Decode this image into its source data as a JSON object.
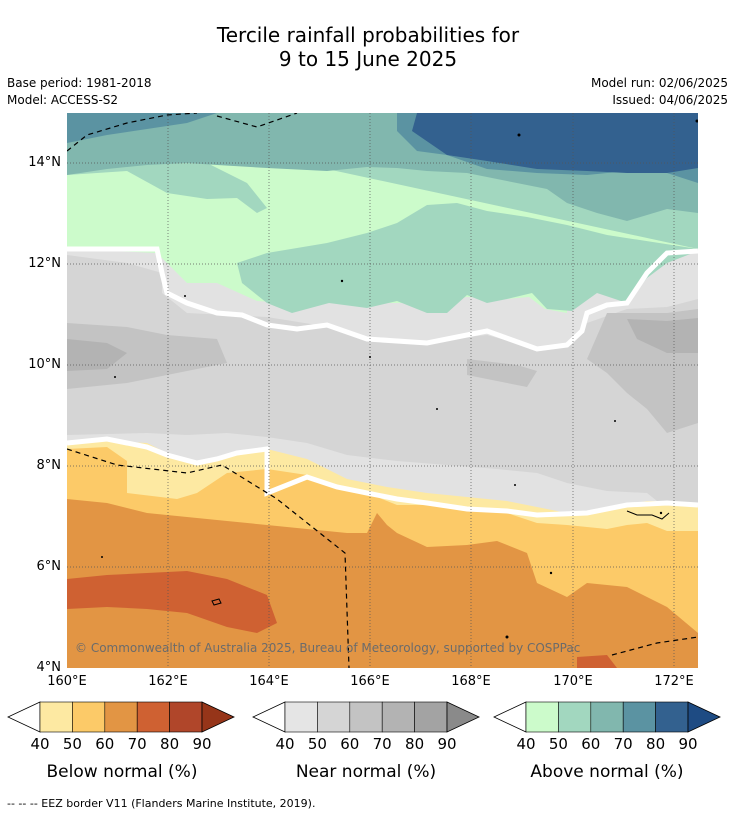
{
  "header": {
    "title_line1": "Tercile rainfall probabilities for",
    "title_line2": "9 to 15 June 2025",
    "base_period": "Base period: 1981-2018",
    "model": "Model: ACCESS-S2",
    "model_run": "Model run: 02/06/2025",
    "issued": "Issued: 04/06/2025"
  },
  "map": {
    "lat_labels": [
      "14°N",
      "12°N",
      "10°N",
      "8°N",
      "6°N",
      "4°N"
    ],
    "lon_labels": [
      "160°E",
      "162°E",
      "164°E",
      "166°E",
      "168°E",
      "170°E",
      "172°E"
    ],
    "copyright": "© Commonwealth of Australia 2025, Bureau of Meteorology, supported by COSPPac",
    "grid": true,
    "gridline_style": "dotted"
  },
  "legend": {
    "scale_labels": [
      "40",
      "50",
      "60",
      "70",
      "80",
      "90"
    ],
    "below": {
      "title": "Below normal (%)",
      "colors": [
        "#fde9a2",
        "#fcca68",
        "#e29544",
        "#cf6132",
        "#b0462a",
        "#963519"
      ]
    },
    "near": {
      "title": "Near normal (%)",
      "colors": [
        "#e5e5e5",
        "#d5d5d5",
        "#c3c3c3",
        "#b3b3b3",
        "#a3a3a3",
        "#8a8a8a"
      ]
    },
    "above": {
      "title": "Above normal (%)",
      "colors": [
        "#ccfbcb",
        "#a2d7bf",
        "#81b7ae",
        "#5b93a2",
        "#33618f",
        "#1e4b83"
      ]
    }
  },
  "footer": {
    "eez_text": "--  --  -- EEZ border V11 (Flanders Marine Institute, 2019)."
  }
}
